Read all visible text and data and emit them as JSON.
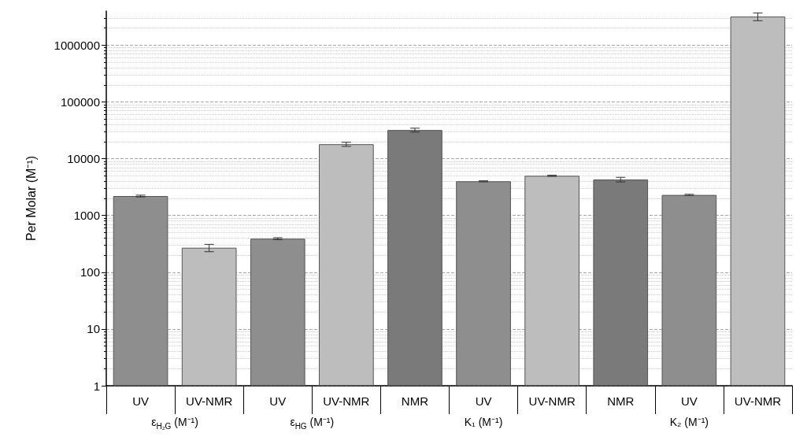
{
  "chart_data": {
    "type": "bar",
    "ylabel": "Per Molar (M⁻¹)",
    "categories": [
      "UV",
      "UV-NMR",
      "UV",
      "UV-NMR",
      "NMR",
      "UV",
      "UV-NMR",
      "NMR",
      "UV",
      "UV-NMR"
    ],
    "values": [
      2200,
      270,
      390,
      18000,
      32000,
      4000,
      5000,
      4300,
      2300,
      3200000
    ],
    "errors": [
      80,
      40,
      15,
      1500,
      2500,
      80,
      120,
      400,
      60,
      500000
    ],
    "colors": [
      "#8e8e8e",
      "#bdbdbd",
      "#8e8e8e",
      "#bdbdbd",
      "#7a7a7a",
      "#8e8e8e",
      "#bdbdbd",
      "#7a7a7a",
      "#8e8e8e",
      "#bdbdbd"
    ],
    "annotations": [
      "ε$_{H₂G}$ (M⁻¹)",
      "ε$_{HG}$ (M⁻¹)",
      "K₁ (M⁻¹)",
      "K₂ (M⁻¹)"
    ],
    "log": true,
    "ylim": [
      1,
      4000000
    ],
    "yticks": [
      1,
      10,
      100,
      1000,
      10000,
      100000,
      1000000
    ],
    "grid": "y"
  }
}
